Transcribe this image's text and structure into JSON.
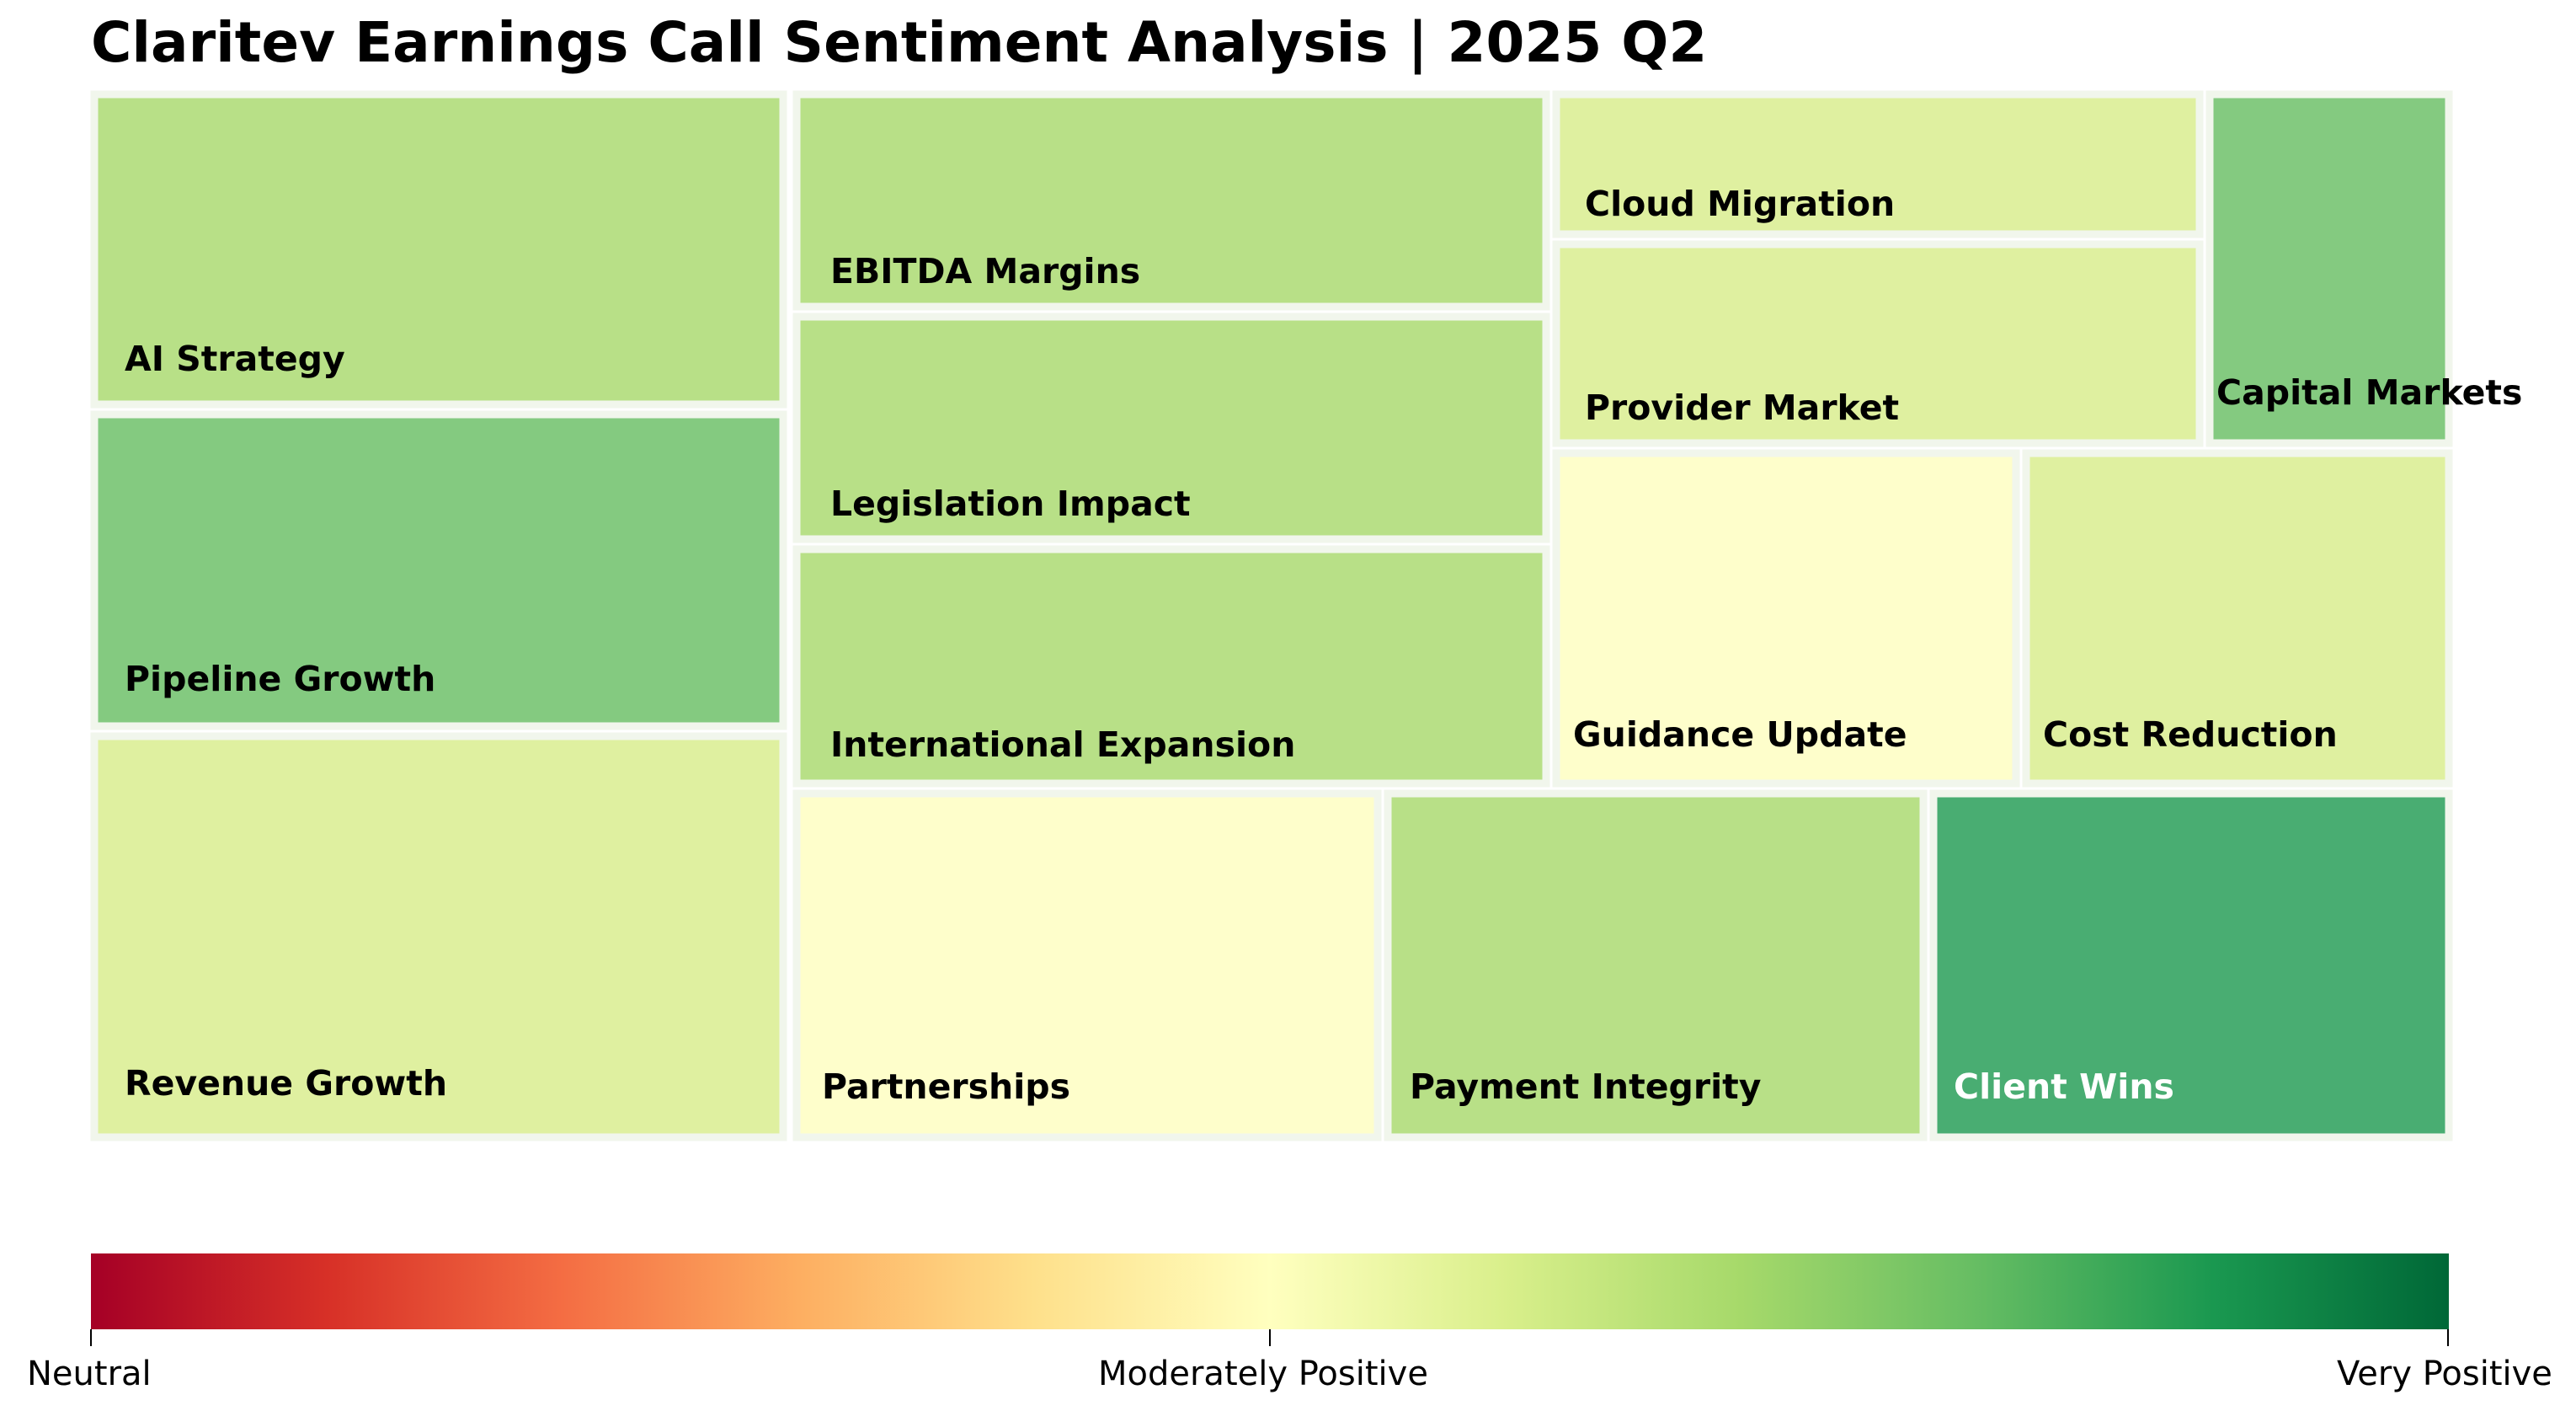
{
  "chart_data": {
    "type": "heatmap",
    "subtype": "treemap",
    "title": "Claritev Earnings Call Sentiment Analysis | 2025 Q2",
    "colormap": "RdYlGn",
    "sentiment_scale": {
      "min_label": "Neutral",
      "mid_label": "Moderately Positive",
      "max_label": "Very Positive",
      "range": [
        0,
        1
      ]
    },
    "cells": [
      {
        "name": "AI Strategy",
        "sentiment": 0.7,
        "color": "#b8e087"
      },
      {
        "name": "Pipeline Growth",
        "sentiment": 0.8,
        "color": "#84ca80"
      },
      {
        "name": "Revenue Growth",
        "sentiment": 0.6,
        "color": "#dff0a0"
      },
      {
        "name": "EBITDA Margins",
        "sentiment": 0.7,
        "color": "#b8e087"
      },
      {
        "name": "Legislation Impact",
        "sentiment": 0.7,
        "color": "#b8e087"
      },
      {
        "name": "International Expansion",
        "sentiment": 0.7,
        "color": "#b8e087"
      },
      {
        "name": "Cloud Migration",
        "sentiment": 0.6,
        "color": "#dff0a0"
      },
      {
        "name": "Provider Market",
        "sentiment": 0.6,
        "color": "#dff0a0"
      },
      {
        "name": "Capital Markets",
        "sentiment": 0.8,
        "color": "#84ca80"
      },
      {
        "name": "Guidance Update",
        "sentiment": 0.5,
        "color": "#fefecb"
      },
      {
        "name": "Cost Reduction",
        "sentiment": 0.6,
        "color": "#dff0a0"
      },
      {
        "name": "Partnerships",
        "sentiment": 0.5,
        "color": "#fefecb"
      },
      {
        "name": "Payment Integrity",
        "sentiment": 0.7,
        "color": "#b8e087"
      },
      {
        "name": "Client Wins",
        "sentiment": 0.9,
        "color": "#49ad72"
      }
    ]
  }
}
